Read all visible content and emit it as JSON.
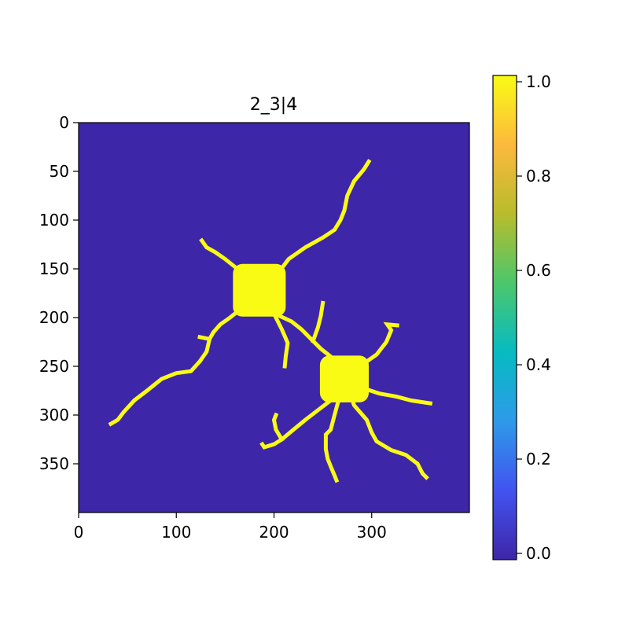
{
  "chart_data": {
    "type": "heatmap",
    "title": "2_3|4",
    "xlabel": "",
    "ylabel": "",
    "xlim": [
      0,
      400
    ],
    "ylim": [
      400,
      0
    ],
    "x_ticks": [
      0,
      100,
      200,
      300
    ],
    "y_ticks": [
      0,
      50,
      100,
      150,
      200,
      250,
      300,
      350
    ],
    "background_value": 0.0,
    "foreground_value": 1.0,
    "colorbar": {
      "range": [
        0.0,
        1.0
      ],
      "ticks": [
        "0.0",
        "0.2",
        "0.4",
        "0.6",
        "0.8",
        "1.0"
      ],
      "colors": [
        "#3e26a8",
        "#4253f0",
        "#2e9ae9",
        "#06bbc1",
        "#4cc76c",
        "#b8bc2c",
        "#fcb93d",
        "#f9fb15"
      ]
    },
    "background_color": "#3e26a8",
    "foreground_color": "#f9fb15",
    "blobs": [
      {
        "cx": 185,
        "cy": 172,
        "rx": 27,
        "ry": 27
      },
      {
        "cx": 272,
        "cy": 263,
        "rx": 25,
        "ry": 24
      }
    ],
    "branches": [
      [
        [
          185,
          172
        ],
        [
          200,
          160
        ],
        [
          215,
          140
        ],
        [
          232,
          128
        ],
        [
          250,
          118
        ],
        [
          262,
          110
        ],
        [
          268,
          100
        ],
        [
          272,
          90
        ],
        [
          275,
          75
        ],
        [
          282,
          60
        ],
        [
          292,
          48
        ],
        [
          297,
          40
        ]
      ],
      [
        [
          185,
          172
        ],
        [
          172,
          158
        ],
        [
          160,
          148
        ],
        [
          150,
          140
        ],
        [
          140,
          133
        ],
        [
          131,
          128
        ],
        [
          126,
          121
        ]
      ],
      [
        [
          185,
          172
        ],
        [
          170,
          188
        ],
        [
          155,
          200
        ],
        [
          145,
          207
        ],
        [
          138,
          215
        ],
        [
          134,
          222
        ],
        [
          131,
          235
        ],
        [
          124,
          245
        ],
        [
          115,
          255
        ],
        [
          100,
          257
        ],
        [
          85,
          263
        ],
        [
          70,
          275
        ],
        [
          57,
          285
        ],
        [
          46,
          297
        ],
        [
          40,
          305
        ],
        [
          33,
          309
        ]
      ],
      [
        [
          134,
          222
        ],
        [
          124,
          220
        ]
      ],
      [
        [
          192,
          190
        ],
        [
          205,
          198
        ],
        [
          218,
          204
        ],
        [
          228,
          212
        ],
        [
          238,
          222
        ],
        [
          248,
          232
        ],
        [
          258,
          240
        ],
        [
          272,
          263
        ]
      ],
      [
        [
          198,
          192
        ],
        [
          208,
          212
        ],
        [
          214,
          226
        ],
        [
          212,
          240
        ],
        [
          211,
          250
        ]
      ],
      [
        [
          240,
          224
        ],
        [
          245,
          210
        ],
        [
          248,
          198
        ],
        [
          250,
          185
        ]
      ],
      [
        [
          272,
          263
        ],
        [
          288,
          250
        ],
        [
          305,
          238
        ],
        [
          315,
          225
        ],
        [
          320,
          213
        ],
        [
          316,
          207
        ],
        [
          326,
          208
        ]
      ],
      [
        [
          272,
          263
        ],
        [
          290,
          272
        ],
        [
          308,
          278
        ],
        [
          325,
          281
        ],
        [
          340,
          285
        ],
        [
          360,
          288
        ]
      ],
      [
        [
          272,
          263
        ],
        [
          258,
          285
        ],
        [
          245,
          295
        ],
        [
          232,
          305
        ],
        [
          220,
          315
        ],
        [
          208,
          325
        ],
        [
          200,
          330
        ],
        [
          190,
          333
        ],
        [
          188,
          330
        ]
      ],
      [
        [
          208,
          325
        ],
        [
          202,
          315
        ],
        [
          200,
          305
        ],
        [
          202,
          300
        ]
      ],
      [
        [
          272,
          263
        ],
        [
          282,
          290
        ],
        [
          295,
          305
        ],
        [
          300,
          318
        ],
        [
          305,
          327
        ],
        [
          320,
          336
        ],
        [
          335,
          341
        ],
        [
          347,
          350
        ],
        [
          352,
          360
        ],
        [
          356,
          364
        ]
      ],
      [
        [
          272,
          263
        ],
        [
          262,
          300
        ],
        [
          258,
          315
        ],
        [
          253,
          320
        ],
        [
          253,
          335
        ],
        [
          255,
          345
        ],
        [
          259,
          355
        ],
        [
          262,
          362
        ],
        [
          264,
          367
        ]
      ]
    ]
  }
}
